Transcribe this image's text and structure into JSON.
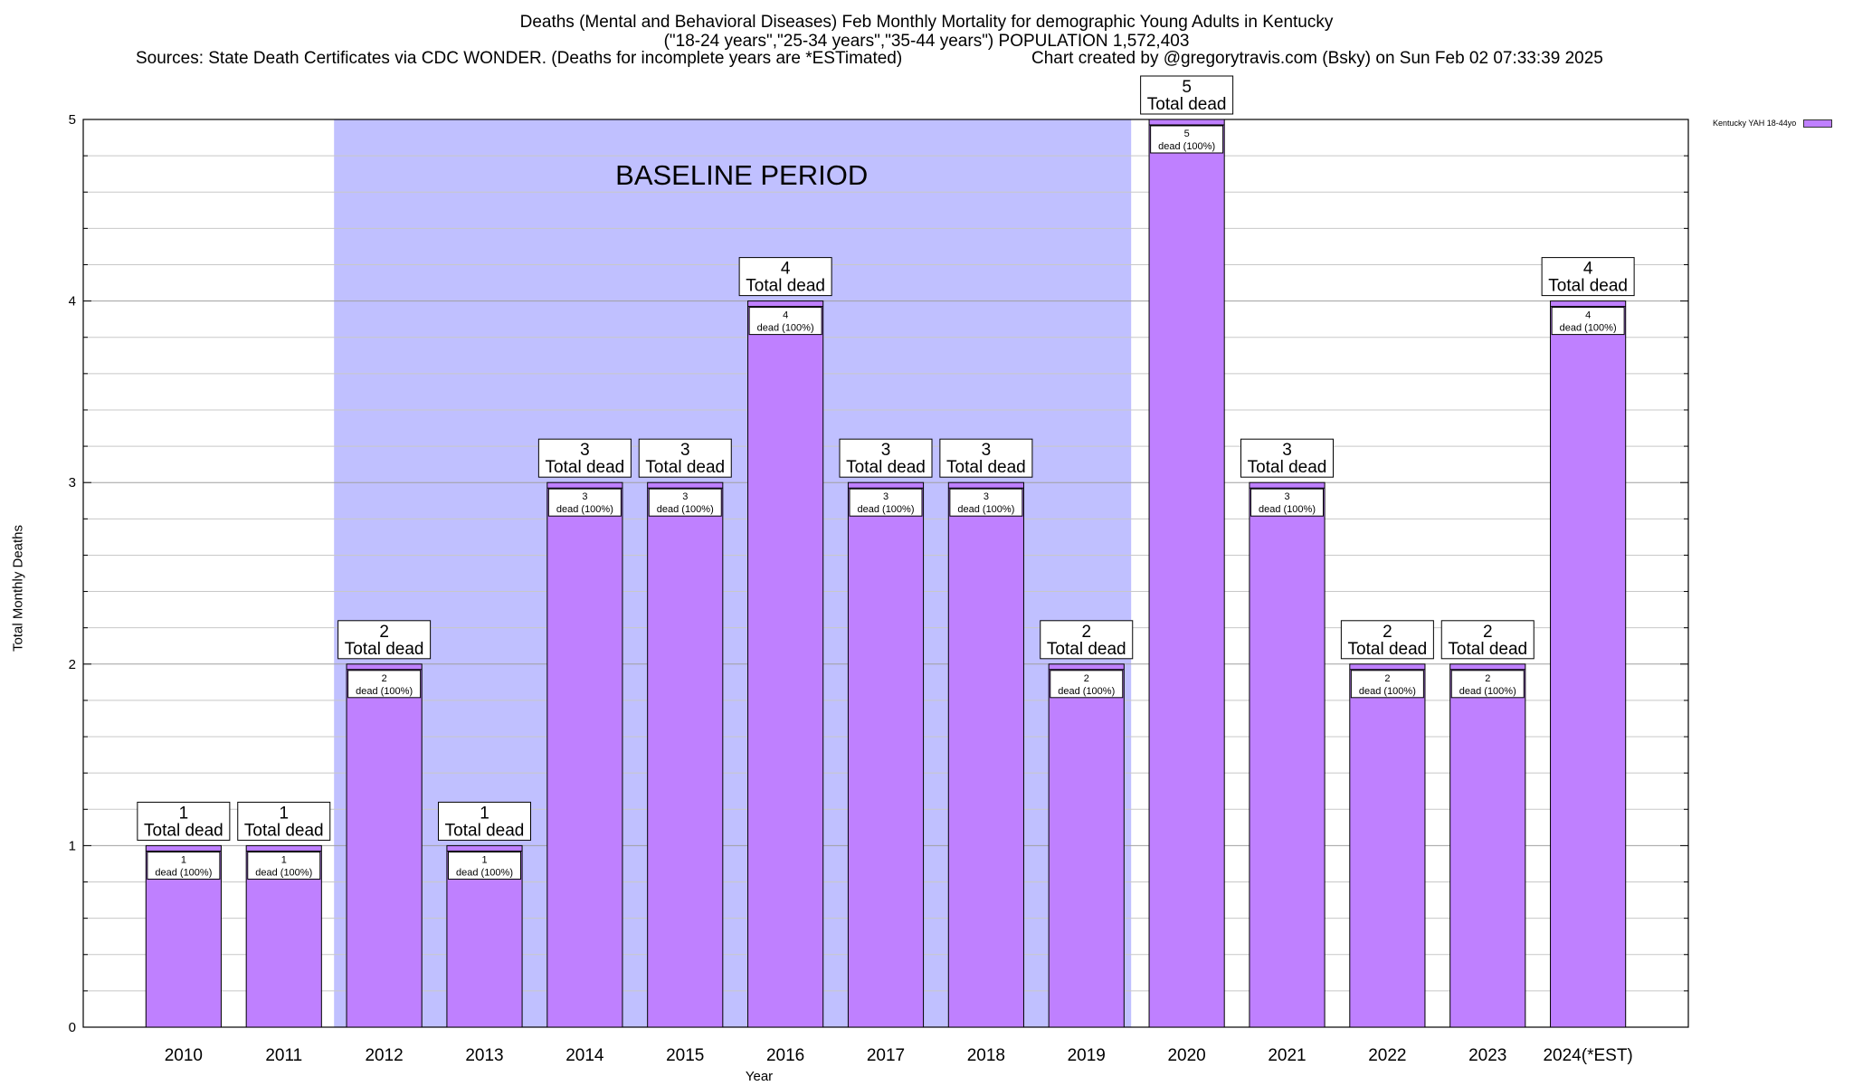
{
  "header": {
    "title_line1": "Deaths (Mental and Behavioral Diseases) Feb Monthly Mortality for demographic Young Adults in Kentucky",
    "title_line2": "(\"18-24 years\",\"25-34 years\",\"35-44 years\") POPULATION 1,572,403",
    "sources": "Sources: State Death Certificates via CDC WONDER. (Deaths for incomplete years are *ESTimated)",
    "created_by": "Chart created by @gregorytravis.com (Bsky) on Sun Feb 02 07:33:39 2025"
  },
  "chart_data": {
    "type": "bar",
    "title": "Deaths (Mental and Behavioral Diseases) Feb Monthly Mortality for demographic Young Adults in Kentucky",
    "xlabel": "Year",
    "ylabel": "Total Monthly Deaths",
    "ylim": [
      0,
      5
    ],
    "yticks": [
      0,
      1,
      2,
      3,
      4,
      5
    ],
    "grid": true,
    "legend_position": "top-right",
    "categories": [
      "2010",
      "2011",
      "2012",
      "2013",
      "2014",
      "2015",
      "2016",
      "2017",
      "2018",
      "2019",
      "2020",
      "2021",
      "2022",
      "2023",
      "2024(*EST)"
    ],
    "series": [
      {
        "name": "Kentucky YAH 18-44yo",
        "values": [
          1,
          1,
          2,
          1,
          3,
          3,
          4,
          3,
          3,
          2,
          5,
          3,
          2,
          2,
          4
        ]
      }
    ],
    "total_label_suffix": "Total dead",
    "inner_label_suffix": "dead (100%)",
    "baseline": {
      "label": "BASELINE PERIOD",
      "start": "2012",
      "end": "2019"
    },
    "colors": {
      "bar": "#bf80ff",
      "baseline": "#c0c0ff"
    }
  }
}
